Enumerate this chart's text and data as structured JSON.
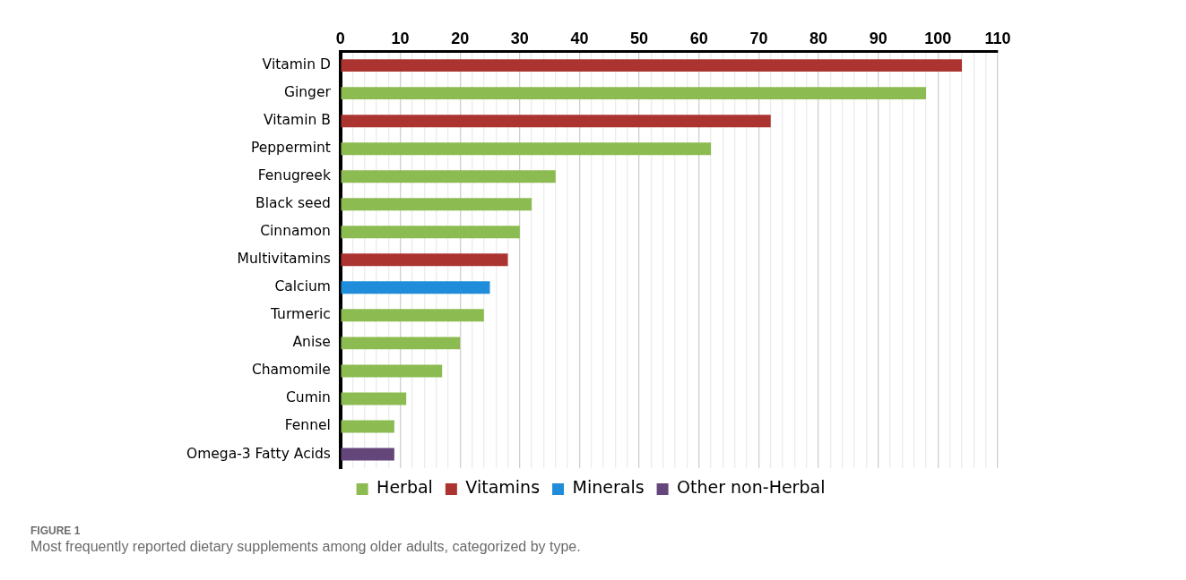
{
  "chart_data": {
    "type": "bar",
    "orientation": "horizontal",
    "stacked": true,
    "categories": [
      "Vitamin D",
      "Ginger",
      "Vitamin B",
      "Peppermint",
      "Fenugreek",
      "Black seed",
      "Cinnamon",
      "Multivitamins",
      "Calcium",
      "Turmeric",
      "Anise",
      "Chamomile",
      "Cumin",
      "Fennel",
      "Omega-3 Fatty Acids"
    ],
    "series": [
      {
        "name": "Herbal",
        "color": "#8cbb51",
        "values": [
          null,
          98,
          null,
          62,
          36,
          32,
          30,
          null,
          null,
          24,
          20,
          17,
          11,
          9,
          null
        ]
      },
      {
        "name": "Vitamins",
        "color": "#ab3431",
        "values": [
          104,
          null,
          72,
          null,
          null,
          null,
          null,
          28,
          null,
          null,
          null,
          null,
          null,
          null,
          null
        ]
      },
      {
        "name": "Minerals",
        "color": "#1f8dd9",
        "values": [
          null,
          null,
          null,
          null,
          null,
          null,
          null,
          null,
          25,
          null,
          null,
          null,
          null,
          null,
          null
        ]
      },
      {
        "name": "Other non-Herbal",
        "color": "#65467b",
        "values": [
          null,
          null,
          null,
          null,
          null,
          null,
          null,
          null,
          null,
          null,
          null,
          null,
          null,
          null,
          9
        ]
      }
    ],
    "xlim": [
      0,
      110
    ],
    "xticks": [
      0,
      {
        "value": 2,
        "label": null
      },
      {
        "value": 4,
        "label": null
      },
      {
        "value": 6,
        "label": null
      },
      {
        "value": 8,
        "label": null
      },
      10,
      {
        "value": 12,
        "label": null
      },
      {
        "value": 14,
        "label": null
      },
      {
        "value": 16,
        "label": null
      },
      {
        "value": 18,
        "label": null
      },
      20,
      {
        "value": 22,
        "label": null
      },
      {
        "value": 24,
        "label": null
      },
      {
        "value": 26,
        "label": null
      },
      {
        "value": 28,
        "label": null
      },
      30,
      {
        "value": 32,
        "label": null
      },
      {
        "value": 34,
        "label": null
      },
      {
        "value": 36,
        "label": null
      },
      {
        "value": 38,
        "label": null
      },
      40,
      {
        "value": 42,
        "label": null
      },
      {
        "value": 44,
        "label": null
      },
      {
        "value": 46,
        "label": null
      },
      {
        "value": 48,
        "label": null
      },
      50,
      {
        "value": 52,
        "label": null
      },
      {
        "value": 54,
        "label": null
      },
      {
        "value": 56,
        "label": null
      },
      {
        "value": 58,
        "label": null
      },
      60,
      {
        "value": 62,
        "label": null
      },
      {
        "value": 64,
        "label": null
      },
      {
        "value": 66,
        "label": null
      },
      {
        "value": 68,
        "label": null
      },
      70,
      {
        "value": 72,
        "label": null
      },
      {
        "value": 74,
        "label": null
      },
      {
        "value": 76,
        "label": null
      },
      {
        "value": 78,
        "label": null
      },
      80,
      {
        "value": 82,
        "label": null
      },
      {
        "value": 84,
        "label": null
      },
      {
        "value": 86,
        "label": null
      },
      {
        "value": 88,
        "label": null
      },
      90,
      {
        "value": 92,
        "label": null
      },
      {
        "value": 94,
        "label": null
      },
      {
        "value": 96,
        "label": null
      },
      {
        "value": 98,
        "label": null
      },
      100,
      {
        "value": 102,
        "label": null
      },
      {
        "value": 104,
        "label": null
      },
      {
        "value": 106,
        "label": null
      },
      {
        "value": 108,
        "label": null
      },
      110
    ],
    "grid": "x",
    "legend": "bottom",
    "annotations": [
      "FIGURE 1",
      "Most frequently reported dietary supplements among older adults, categorized by type."
    ]
  }
}
